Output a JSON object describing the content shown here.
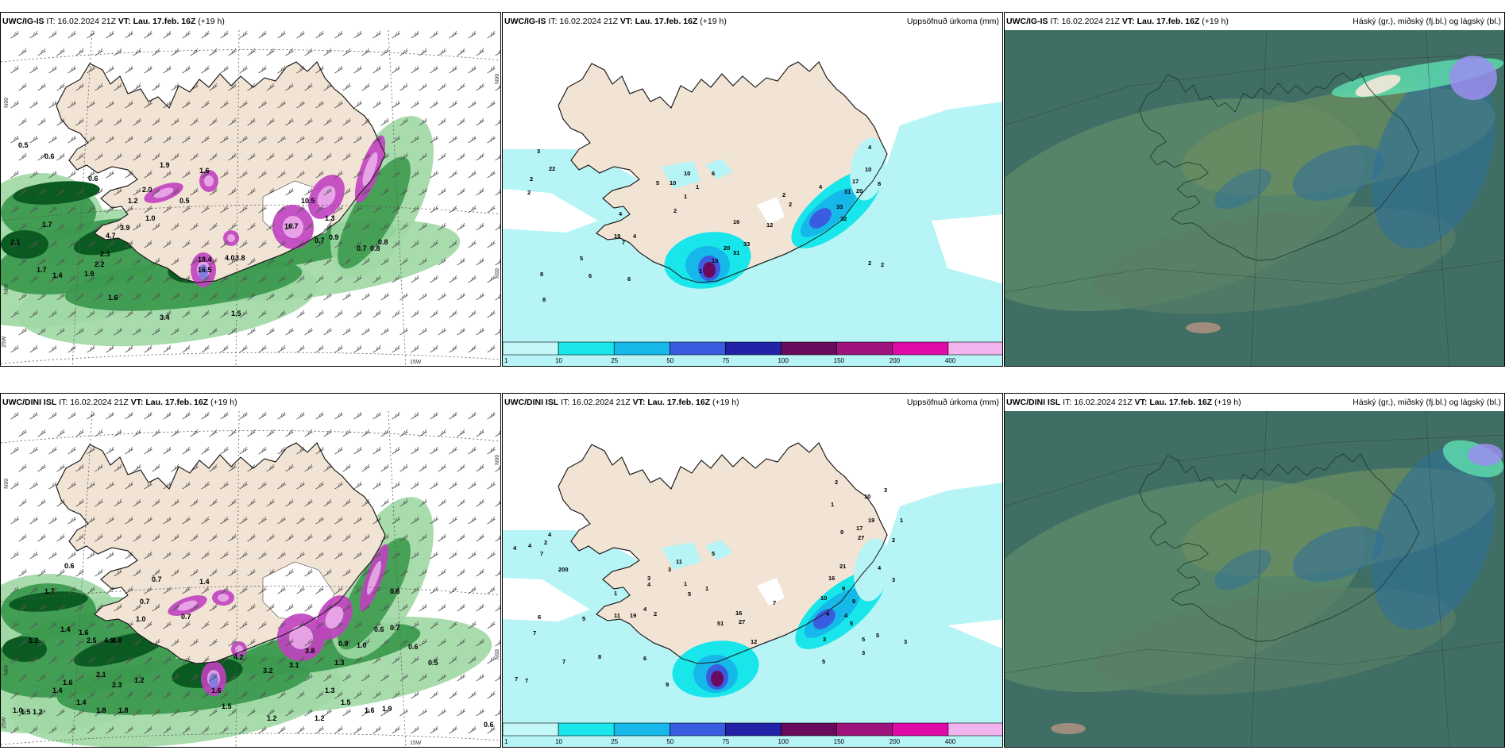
{
  "panels": [
    {
      "model": "UWC/IG-IS",
      "it_label": "IT:",
      "it": "16.02.2024 21Z",
      "vt_label": "VT:",
      "vt": "Lau. 17.feb. 16Z",
      "lead": "(+19 h)",
      "right": ""
    },
    {
      "model": "UWC/IG-IS",
      "it_label": "IT:",
      "it": "16.02.2024 21Z",
      "vt_label": "VT:",
      "vt": "Lau. 17.feb. 16Z",
      "lead": "(+19 h)",
      "right": "Uppsöfnuð úrkoma (mm)"
    },
    {
      "model": "UWC/IG-IS",
      "it_label": "IT:",
      "it": "16.02.2024 21Z",
      "vt_label": "VT:",
      "vt": "Lau. 17.feb. 16Z",
      "lead": "(+19 h)",
      "right": "Háský (gr.), miðský (fj.bl.) og lágský (bl.)"
    },
    {
      "model": "UWC/DINI ISL",
      "it_label": "IT:",
      "it": "16.02.2024 21Z",
      "vt_label": "VT:",
      "vt": "Lau. 17.feb. 16Z",
      "lead": "(+19 h)",
      "right": ""
    },
    {
      "model": "UWC/DINI ISL",
      "it_label": "IT:",
      "it": "16.02.2024 21Z",
      "vt_label": "VT:",
      "vt": "Lau. 17.feb. 16Z",
      "lead": "(+19 h)",
      "right": "Uppsöfnuð úrkoma (mm)"
    },
    {
      "model": "UWC/DINI ISL",
      "it_label": "IT:",
      "it": "16.02.2024 21Z",
      "vt_label": "VT:",
      "vt": "Lau. 17.feb. 16Z",
      "lead": "(+19 h)",
      "right": "Háský (gr.), miðský (fj.bl.) og lágský (bl.)"
    }
  ],
  "grid_labels": {
    "n66": "66N",
    "n65": "65N",
    "n64": "64N",
    "w25": "25W",
    "w15": "15W"
  },
  "colorbar": {
    "ticks": [
      "1",
      "10",
      "25",
      "50",
      "75",
      "100",
      "150",
      "200",
      "400"
    ],
    "colors": [
      "#c4f8f8",
      "#19e6ea",
      "#15b8e8",
      "#3a5ce0",
      "#2222a8",
      "#6a0a5c",
      "#a0127e",
      "#e00aa8",
      "#f2b4ee"
    ]
  },
  "colors": {
    "land": "#f2e4d4",
    "precip_light": "#b6f4f6",
    "green_dark": "#0b5a22",
    "green_mid": "#3c9a4e",
    "green_light": "#9fd8a4",
    "magenta": "#c040c0",
    "cloud_base": "#4e7f74"
  },
  "annotations": {
    "p0": [
      {
        "t": "0.5",
        "x": 22,
        "y": 148
      },
      {
        "t": "0.6",
        "x": 55,
        "y": 162
      },
      {
        "t": "0.6",
        "x": 110,
        "y": 190
      },
      {
        "t": "1.9",
        "x": 200,
        "y": 173
      },
      {
        "t": "2.0",
        "x": 178,
        "y": 204
      },
      {
        "t": "0.5",
        "x": 225,
        "y": 218
      },
      {
        "t": "1.6",
        "x": 250,
        "y": 180
      },
      {
        "t": "1.7",
        "x": 52,
        "y": 248
      },
      {
        "t": "2.1",
        "x": 12,
        "y": 270
      },
      {
        "t": "3.9",
        "x": 150,
        "y": 252
      },
      {
        "t": "4.7",
        "x": 132,
        "y": 262
      },
      {
        "t": "2.3",
        "x": 125,
        "y": 285
      },
      {
        "t": "2.2",
        "x": 118,
        "y": 298
      },
      {
        "t": "1.9",
        "x": 105,
        "y": 310
      },
      {
        "t": "1.6",
        "x": 135,
        "y": 340
      },
      {
        "t": "1.7",
        "x": 45,
        "y": 305
      },
      {
        "t": "1.4",
        "x": 65,
        "y": 312
      },
      {
        "t": "3.4",
        "x": 200,
        "y": 365
      },
      {
        "t": "1.5",
        "x": 290,
        "y": 360
      },
      {
        "t": "4.0",
        "x": 282,
        "y": 290
      },
      {
        "t": "3.8",
        "x": 295,
        "y": 290
      },
      {
        "t": "16.5",
        "x": 248,
        "y": 305
      },
      {
        "t": "18.4",
        "x": 248,
        "y": 292
      },
      {
        "t": "0.7",
        "x": 395,
        "y": 268
      },
      {
        "t": "0.9",
        "x": 413,
        "y": 264
      },
      {
        "t": "0.7",
        "x": 448,
        "y": 278
      },
      {
        "t": "0.8",
        "x": 465,
        "y": 278
      },
      {
        "t": "0.8",
        "x": 475,
        "y": 270
      },
      {
        "t": "16.7",
        "x": 357,
        "y": 250
      },
      {
        "t": "10.5",
        "x": 378,
        "y": 218
      },
      {
        "t": "1.0",
        "x": 182,
        "y": 240
      },
      {
        "t": "1.2",
        "x": 160,
        "y": 218
      },
      {
        "t": "1.3",
        "x": 408,
        "y": 240
      }
    ],
    "p1": [
      {
        "t": "3",
        "x": 43,
        "y": 155
      },
      {
        "t": "2",
        "x": 34,
        "y": 190
      },
      {
        "t": "2",
        "x": 31,
        "y": 207
      },
      {
        "t": "22",
        "x": 58,
        "y": 177
      },
      {
        "t": "4",
        "x": 146,
        "y": 234
      },
      {
        "t": "4",
        "x": 164,
        "y": 262
      },
      {
        "t": "19",
        "x": 140,
        "y": 262
      },
      {
        "t": "7",
        "x": 150,
        "y": 270
      },
      {
        "t": "5",
        "x": 97,
        "y": 290
      },
      {
        "t": "8",
        "x": 47,
        "y": 310
      },
      {
        "t": "6",
        "x": 108,
        "y": 312
      },
      {
        "t": "6",
        "x": 157,
        "y": 316
      },
      {
        "t": "8",
        "x": 50,
        "y": 342
      },
      {
        "t": "5",
        "x": 193,
        "y": 195
      },
      {
        "t": "10",
        "x": 210,
        "y": 195
      },
      {
        "t": "10",
        "x": 228,
        "y": 183
      },
      {
        "t": "6",
        "x": 263,
        "y": 183
      },
      {
        "t": "1",
        "x": 243,
        "y": 200
      },
      {
        "t": "1",
        "x": 228,
        "y": 212
      },
      {
        "t": "2",
        "x": 215,
        "y": 230
      },
      {
        "t": "16",
        "x": 290,
        "y": 244
      },
      {
        "t": "12",
        "x": 332,
        "y": 248
      },
      {
        "t": "20",
        "x": 278,
        "y": 277
      },
      {
        "t": "31",
        "x": 290,
        "y": 283
      },
      {
        "t": "33",
        "x": 303,
        "y": 272
      },
      {
        "t": "13",
        "x": 263,
        "y": 293
      },
      {
        "t": "1",
        "x": 247,
        "y": 306
      },
      {
        "t": "4",
        "x": 460,
        "y": 150
      },
      {
        "t": "10",
        "x": 456,
        "y": 178
      },
      {
        "t": "17",
        "x": 440,
        "y": 193
      },
      {
        "t": "31",
        "x": 430,
        "y": 206
      },
      {
        "t": "20",
        "x": 445,
        "y": 205
      },
      {
        "t": "4",
        "x": 398,
        "y": 200
      },
      {
        "t": "8",
        "x": 472,
        "y": 196
      },
      {
        "t": "33",
        "x": 420,
        "y": 225
      },
      {
        "t": "32",
        "x": 425,
        "y": 240
      },
      {
        "t": "2",
        "x": 360,
        "y": 222
      },
      {
        "t": "2",
        "x": 460,
        "y": 296
      },
      {
        "t": "2",
        "x": 476,
        "y": 298
      },
      {
        "t": "2",
        "x": 352,
        "y": 210
      }
    ],
    "p3": [
      {
        "t": "0.6",
        "x": 80,
        "y": 198
      },
      {
        "t": "1.7",
        "x": 55,
        "y": 230
      },
      {
        "t": "0.7",
        "x": 190,
        "y": 215
      },
      {
        "t": "0.7",
        "x": 227,
        "y": 262
      },
      {
        "t": "1.4",
        "x": 250,
        "y": 218
      },
      {
        "t": "0.7",
        "x": 175,
        "y": 243
      },
      {
        "t": "1.0",
        "x": 170,
        "y": 265
      },
      {
        "t": "2.5",
        "x": 108,
        "y": 292
      },
      {
        "t": "4.9",
        "x": 130,
        "y": 292
      },
      {
        "t": "4.8",
        "x": 140,
        "y": 292
      },
      {
        "t": "1.6",
        "x": 98,
        "y": 282
      },
      {
        "t": "1.4",
        "x": 75,
        "y": 278
      },
      {
        "t": "1.2",
        "x": 35,
        "y": 292
      },
      {
        "t": "2.1",
        "x": 120,
        "y": 335
      },
      {
        "t": "2.3",
        "x": 140,
        "y": 348
      },
      {
        "t": "1.2",
        "x": 168,
        "y": 342
      },
      {
        "t": "1.4",
        "x": 65,
        "y": 355
      },
      {
        "t": "1.6",
        "x": 78,
        "y": 345
      },
      {
        "t": "1.4",
        "x": 95,
        "y": 370
      },
      {
        "t": "1.8",
        "x": 120,
        "y": 380
      },
      {
        "t": "1.8",
        "x": 148,
        "y": 380
      },
      {
        "t": "1.2",
        "x": 40,
        "y": 382
      },
      {
        "t": "1.5",
        "x": 25,
        "y": 382
      },
      {
        "t": "1.0",
        "x": 15,
        "y": 380
      },
      {
        "t": "4.2",
        "x": 293,
        "y": 313
      },
      {
        "t": "3.2",
        "x": 330,
        "y": 330
      },
      {
        "t": "3.1",
        "x": 363,
        "y": 323
      },
      {
        "t": "3.8",
        "x": 383,
        "y": 305
      },
      {
        "t": "0.9",
        "x": 425,
        "y": 296
      },
      {
        "t": "1.0",
        "x": 448,
        "y": 298
      },
      {
        "t": "0.6",
        "x": 470,
        "y": 278
      },
      {
        "t": "0.7",
        "x": 490,
        "y": 276
      },
      {
        "t": "0.6",
        "x": 513,
        "y": 300
      },
      {
        "t": "0.5",
        "x": 538,
        "y": 320
      },
      {
        "t": "1.3",
        "x": 408,
        "y": 355
      },
      {
        "t": "1.5",
        "x": 428,
        "y": 370
      },
      {
        "t": "1.6",
        "x": 458,
        "y": 380
      },
      {
        "t": "1.9",
        "x": 480,
        "y": 378
      },
      {
        "t": "1.2",
        "x": 395,
        "y": 390
      },
      {
        "t": "1.2",
        "x": 335,
        "y": 390
      },
      {
        "t": "1.6",
        "x": 265,
        "y": 355
      },
      {
        "t": "1.5",
        "x": 278,
        "y": 375
      },
      {
        "t": "0.6",
        "x": 490,
        "y": 230
      },
      {
        "t": "0.6",
        "x": 608,
        "y": 398
      },
      {
        "t": "1.3",
        "x": 420,
        "y": 320
      }
    ],
    "p4": [
      {
        "t": "4",
        "x": 13,
        "y": 175
      },
      {
        "t": "4",
        "x": 32,
        "y": 172
      },
      {
        "t": "2",
        "x": 52,
        "y": 168
      },
      {
        "t": "7",
        "x": 47,
        "y": 182
      },
      {
        "t": "4",
        "x": 57,
        "y": 158
      },
      {
        "t": "200",
        "x": 70,
        "y": 202
      },
      {
        "t": "6",
        "x": 44,
        "y": 262
      },
      {
        "t": "5",
        "x": 100,
        "y": 264
      },
      {
        "t": "7",
        "x": 38,
        "y": 282
      },
      {
        "t": "7",
        "x": 15,
        "y": 340
      },
      {
        "t": "7",
        "x": 28,
        "y": 342
      },
      {
        "t": "7",
        "x": 75,
        "y": 318
      },
      {
        "t": "8",
        "x": 120,
        "y": 312
      },
      {
        "t": "6",
        "x": 177,
        "y": 314
      },
      {
        "t": "9",
        "x": 205,
        "y": 347
      },
      {
        "t": "11",
        "x": 140,
        "y": 260
      },
      {
        "t": "19",
        "x": 160,
        "y": 260
      },
      {
        "t": "4",
        "x": 177,
        "y": 252
      },
      {
        "t": "2",
        "x": 190,
        "y": 258
      },
      {
        "t": "1",
        "x": 140,
        "y": 232
      },
      {
        "t": "5",
        "x": 233,
        "y": 233
      },
      {
        "t": "4",
        "x": 182,
        "y": 221
      },
      {
        "t": "3",
        "x": 182,
        "y": 213
      },
      {
        "t": "11",
        "x": 218,
        "y": 192
      },
      {
        "t": "3",
        "x": 208,
        "y": 202
      },
      {
        "t": "5",
        "x": 263,
        "y": 182
      },
      {
        "t": "1",
        "x": 228,
        "y": 220
      },
      {
        "t": "1",
        "x": 255,
        "y": 226
      },
      {
        "t": "16",
        "x": 293,
        "y": 257
      },
      {
        "t": "27",
        "x": 297,
        "y": 268
      },
      {
        "t": "51",
        "x": 270,
        "y": 270
      },
      {
        "t": "12",
        "x": 312,
        "y": 293
      },
      {
        "t": "7",
        "x": 340,
        "y": 244
      },
      {
        "t": "16",
        "x": 410,
        "y": 213
      },
      {
        "t": "10",
        "x": 400,
        "y": 238
      },
      {
        "t": "21",
        "x": 424,
        "y": 198
      },
      {
        "t": "9",
        "x": 427,
        "y": 226
      },
      {
        "t": "9",
        "x": 440,
        "y": 242
      },
      {
        "t": "4",
        "x": 407,
        "y": 258
      },
      {
        "t": "4",
        "x": 430,
        "y": 260
      },
      {
        "t": "5",
        "x": 437,
        "y": 270
      },
      {
        "t": "3",
        "x": 403,
        "y": 290
      },
      {
        "t": "5",
        "x": 452,
        "y": 290
      },
      {
        "t": "5",
        "x": 470,
        "y": 285
      },
      {
        "t": "3",
        "x": 505,
        "y": 293
      },
      {
        "t": "3",
        "x": 452,
        "y": 307
      },
      {
        "t": "5",
        "x": 402,
        "y": 318
      },
      {
        "t": "2",
        "x": 418,
        "y": 92
      },
      {
        "t": "10",
        "x": 455,
        "y": 110
      },
      {
        "t": "3",
        "x": 480,
        "y": 102
      },
      {
        "t": "19",
        "x": 460,
        "y": 140
      },
      {
        "t": "17",
        "x": 445,
        "y": 150
      },
      {
        "t": "27",
        "x": 447,
        "y": 162
      },
      {
        "t": "9",
        "x": 425,
        "y": 155
      },
      {
        "t": "2",
        "x": 490,
        "y": 165
      },
      {
        "t": "4",
        "x": 472,
        "y": 200
      },
      {
        "t": "3",
        "x": 490,
        "y": 215
      },
      {
        "t": "1",
        "x": 413,
        "y": 120
      },
      {
        "t": "1",
        "x": 500,
        "y": 140
      }
    ]
  }
}
